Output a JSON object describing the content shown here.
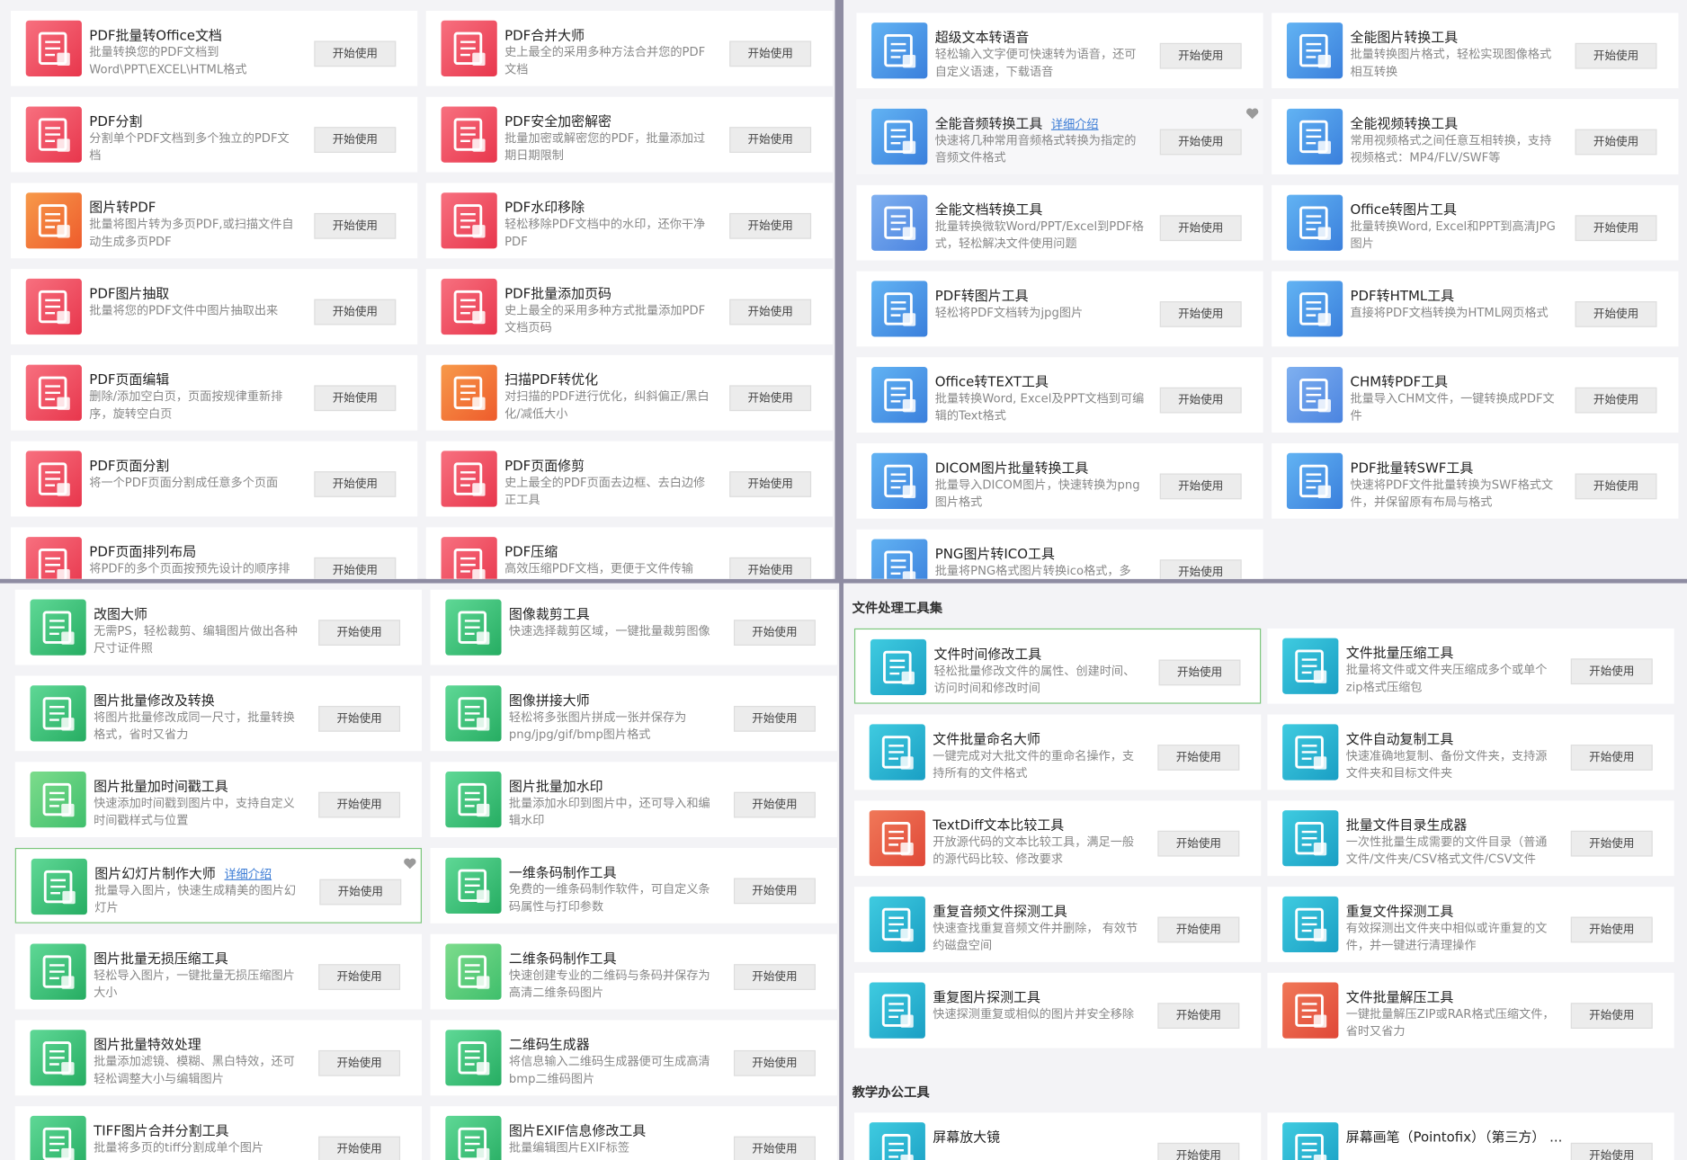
{
  "button_label": "开始使用",
  "panels": [
    {
      "sections": [
        {
          "cards": [
            {
              "title": "PDF批量转Office文档",
              "desc": "批量转换您的PDF文档到Word\\PPT\\EXCEL\\HTML格式"
            },
            {
              "title": "PDF合并大师",
              "desc": "史上最全的采用多种方法合并您的PDF文档"
            },
            {
              "title": "PDF分割",
              "desc": "分割单个PDF文档到多个独立的PDF文档"
            },
            {
              "title": "PDF安全加密解密",
              "desc": "批量加密或解密您的PDF，批量添加过期日期限制"
            },
            {
              "title": "图片转PDF",
              "desc": "批量将图片转为多页PDF,或扫描文件自动生成多页PDF"
            },
            {
              "title": "PDF水印移除",
              "desc": "轻松移除PDF文档中的水印，还你干净PDF"
            },
            {
              "title": "PDF图片抽取",
              "desc": "批量将您的PDF文件中图片抽取出来"
            },
            {
              "title": "PDF批量添加页码",
              "desc": "史上最全的采用多种方式批量添加PDF文档页码"
            },
            {
              "title": "PDF页面编辑",
              "desc": "删除/添加空白页，页面按规律重新排序，旋转空白页"
            },
            {
              "title": "扫描PDF转优化",
              "desc": "对扫描的PDF进行优化，纠斜偏正/黑白化/减低大小"
            },
            {
              "title": "PDF页面分割",
              "desc": "将一个PDF页面分割成任意多个页面"
            },
            {
              "title": "PDF页面修剪",
              "desc": "史上最全的PDF页面去边框、去白边修正工具"
            },
            {
              "title": "PDF页面排列布局",
              "desc": "将PDF的多个页面按预先设计的顺序排"
            },
            {
              "title": "PDF压缩",
              "desc": "高效压缩PDF文档，更便于文件传输"
            }
          ]
        }
      ]
    },
    {
      "sections": [
        {
          "cards": [
            {
              "title": "超级文本转语音",
              "desc": "轻松输入文字便可快速转为语音，还可自定义语速，下载语音"
            },
            {
              "title": "全能图片转换工具",
              "desc": "批量转换图片格式，轻松实现图像格式相互转换"
            },
            {
              "title": "全能音频转换工具",
              "link": "详细介绍",
              "desc": "快速将几种常用音频格式转换为指定的音频文件格式"
            },
            {
              "title": "全能视频转换工具",
              "desc": "常用视频格式之间任意互相转换，支持视频格式：MP4/FLV/SWF等"
            },
            {
              "title": "全能文档转换工具",
              "desc": "批量转换微软Word/PPT/Excel到PDF格式，轻松解决文件使用问题"
            },
            {
              "title": "Office转图片工具",
              "desc": "批量转换Word, Excel和PPT到高清JPG图片"
            },
            {
              "title": "PDF转图片工具",
              "desc": "轻松将PDF文档转为jpg图片"
            },
            {
              "title": "PDF转HTML工具",
              "desc": "直接将PDF文档转换为HTML网页格式"
            },
            {
              "title": "Office转TEXT工具",
              "desc": "批量转换Word, Excel及PPT文档到可编辑的Text格式"
            },
            {
              "title": "CHM转PDF工具",
              "desc": "批量导入CHM文件，一键转换成PDF文件"
            },
            {
              "title": "DICOM图片批量转换工具",
              "desc": "批量导入DICOM图片，快速转换为png图片格式"
            },
            {
              "title": "PDF批量转SWF工具",
              "desc": "快速将PDF文件批量转换为SWF格式文件，并保留原有布局与格式"
            },
            {
              "title": "PNG图片转ICO工具",
              "desc": "批量将PNG格式图片转换ico格式，多"
            }
          ]
        }
      ]
    },
    {
      "sections": [
        {
          "cards": [
            {
              "title": "改图大师",
              "desc": "无需PS，轻松裁剪、编辑图片做出各种尺寸证件照"
            },
            {
              "title": "图像裁剪工具",
              "desc": "快速选择裁剪区域，一键批量裁剪图像"
            },
            {
              "title": "图片批量修改及转换",
              "desc": "将图片批量修改成同一尺寸，批量转换格式，省时又省力"
            },
            {
              "title": "图像拼接大师",
              "desc": "轻松将多张图片拼成一张并保存为png/jpg/gif/bmp图片格式"
            },
            {
              "title": "图片批量加时间戳工具",
              "desc": "快速添加时间戳到图片中，支持自定义时间戳样式与位置"
            },
            {
              "title": "图片批量加水印",
              "desc": "批量添加水印到图片中，还可导入和编辑水印"
            },
            {
              "title": "图片幻灯片制作大师",
              "link": "详细介绍",
              "desc": "批量导入图片，快速生成精美的图片幻灯片"
            },
            {
              "title": "一维条码制作工具",
              "desc": "免费的一维条码制作软件，可自定义条码属性与打印参数"
            },
            {
              "title": "图片批量无损压缩工具",
              "desc": "轻松导入图片，一键批量无损压缩图片大小"
            },
            {
              "title": "二维条码制作工具",
              "desc": "快速创建专业的二维码与条码并保存为高清二维条码图片"
            },
            {
              "title": "图片批量特效处理",
              "desc": "批量添加滤镜、模糊、黑白特效，还可轻松调整大小与编辑图片"
            },
            {
              "title": "二维码生成器",
              "desc": "将信息输入二维码生成器便可生成高清bmp二维码图片"
            },
            {
              "title": "TIFF图片合并分割工具",
              "desc": "批量将多页的tiff分割成单个图片"
            },
            {
              "title": "图片EXIF信息修改工具",
              "desc": "批量编辑图片EXIF标签"
            }
          ]
        }
      ]
    },
    {
      "sections": [
        {
          "heading": "文件处理工具集",
          "cards": [
            {
              "title": "文件时间修改工具",
              "desc": "轻松批量修改文件的属性、创建时间、访问时间和修改时间"
            },
            {
              "title": "文件批量压缩工具",
              "desc": "批量将文件或文件夹压缩成多个或单个zip格式压缩包"
            },
            {
              "title": "文件批量命名大师",
              "desc": "一键完成对大批文件的重命名操作，支持所有的文件格式"
            },
            {
              "title": "文件自动复制工具",
              "desc": "快速准确地复制、备份文件夹，支持源文件夹和目标文件夹"
            },
            {
              "title": "TextDiff文本比较工具",
              "desc": "开放源代码的文本比较工具，满足一般的源代码比较、修改要求"
            },
            {
              "title": "批量文件目录生成器",
              "desc": "一次性批量生成需要的文件目录（普通文件/文件夹/CSV格式文件/CSV文件"
            },
            {
              "title": "重复音频文件探测工具",
              "desc": "快速查找重复音频文件并删除， 有效节约磁盘空间"
            },
            {
              "title": "重复文件探测工具",
              "desc": "有效探测出文件夹中相似或许重复的文件，并一键进行清理操作"
            },
            {
              "title": "重复图片探测工具",
              "desc": "快速探测重复或相似的图片并安全移除"
            },
            {
              "title": "文件批量解压工具",
              "desc": "一键批量解压ZIP或RAR格式压缩文件，省时又省力"
            }
          ]
        },
        {
          "heading": "教学办公工具",
          "cards": [
            {
              "title": "屏幕放大镜",
              "desc": ""
            },
            {
              "title": "屏幕画笔（Pointofix）（第三方）   ...",
              "desc": ""
            }
          ]
        }
      ]
    }
  ]
}
